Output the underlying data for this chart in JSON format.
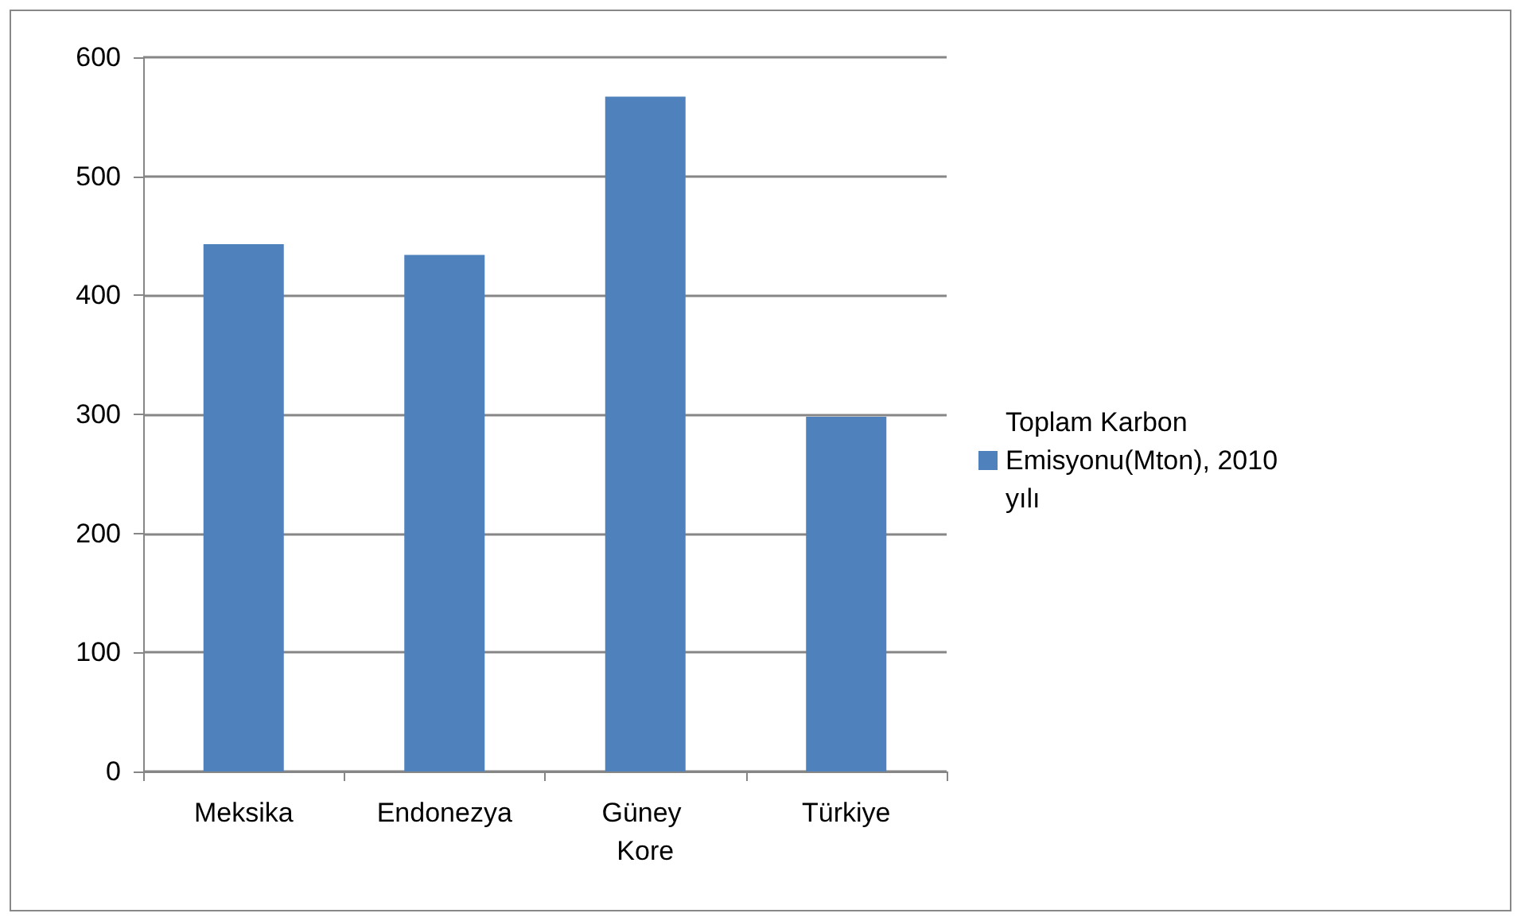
{
  "chart_data": {
    "type": "bar",
    "categories": [
      "Meksika",
      "Endonezya",
      "Güney Kore",
      "Türkiye"
    ],
    "series": [
      {
        "name": "Toplam Karbon Emisyonu(Mton), 2010 yılı",
        "color": "#4f81bd",
        "values": [
          443,
          434,
          567,
          298
        ]
      }
    ],
    "ylim": [
      0,
      600
    ],
    "yticks": [
      0,
      100,
      200,
      300,
      400,
      500,
      600
    ],
    "grid": "y",
    "legend": "right"
  }
}
